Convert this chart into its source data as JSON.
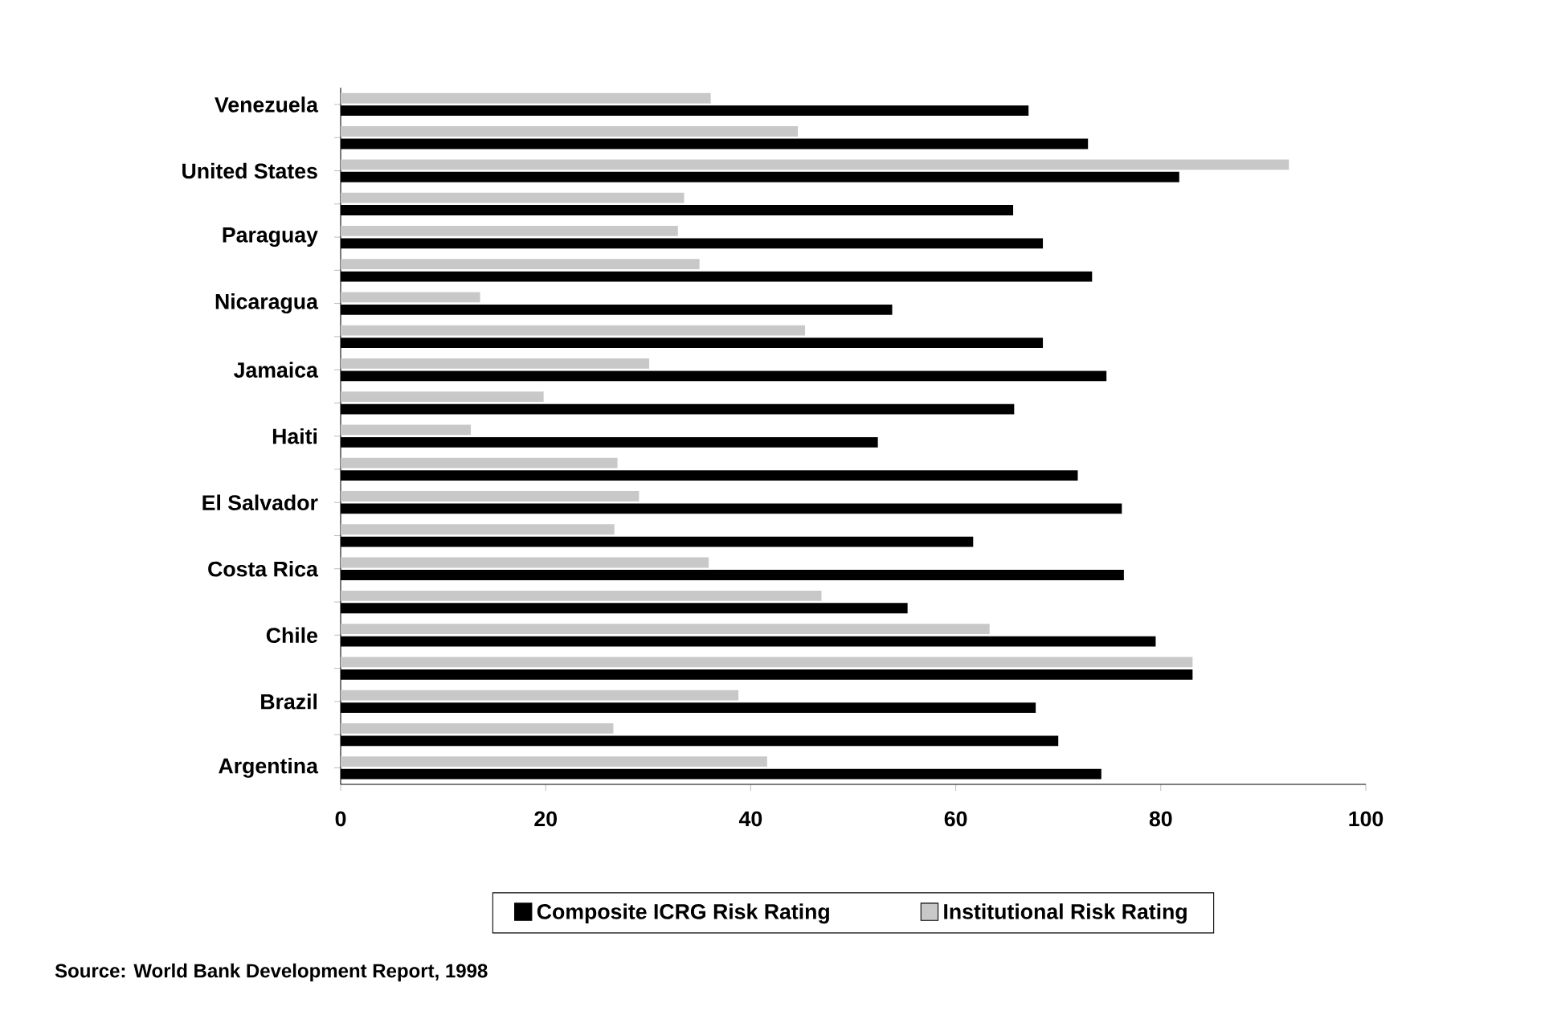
{
  "chart_data": {
    "type": "bar",
    "orientation": "horizontal",
    "categories": [
      "Venezuela",
      null,
      "United States",
      null,
      "Paraguay",
      null,
      "Nicaragua",
      null,
      "Jamaica",
      null,
      "Haiti",
      null,
      "El Salvador",
      null,
      "Costa Rica",
      null,
      "Chile",
      null,
      "Brazil",
      null,
      "Argentina"
    ],
    "series": [
      {
        "name": "Composite ICRG Risk Rating",
        "color": "#000000",
        "values": [
          67.1,
          72.9,
          81.8,
          65.6,
          68.5,
          73.3,
          53.8,
          68.5,
          74.7,
          65.7,
          52.4,
          71.9,
          76.2,
          61.7,
          76.4,
          55.3,
          79.5,
          83.1,
          67.8,
          70.0,
          74.2
        ]
      },
      {
        "name": "Institutional Risk Rating",
        "color": "#c8c8c8",
        "values": [
          36.1,
          44.6,
          92.5,
          33.5,
          32.9,
          35.0,
          13.6,
          45.3,
          30.1,
          19.8,
          12.7,
          27.0,
          29.1,
          26.7,
          35.9,
          46.9,
          63.3,
          83.1,
          38.8,
          26.6,
          41.6
        ]
      }
    ],
    "xlim": [
      0,
      100
    ],
    "xticks": [
      0,
      20,
      40,
      60,
      80,
      100
    ],
    "grid": false,
    "legend": "bottom",
    "annotations": [
      "Source: World Bank Development Report, 1998"
    ]
  }
}
